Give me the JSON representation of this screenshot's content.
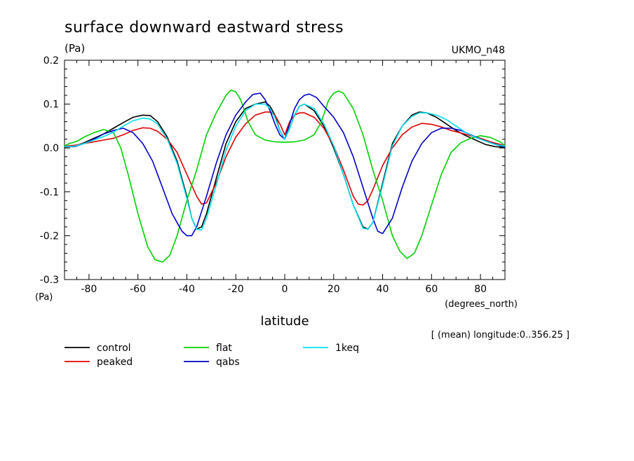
{
  "chart_data": {
    "type": "line",
    "title": "surface downward eastward stress",
    "units_label": "(Pa)",
    "axis_units_left": "(Pa)",
    "model_label": "UKMO_n48",
    "xlabel": "latitude",
    "xunits": "(degrees_north)",
    "subtitle_note": "[ (mean) longitude:0..356.25 ]",
    "xlim": [
      -90,
      90
    ],
    "ylim": [
      -0.3,
      0.2
    ],
    "xticks": [
      -80,
      -60,
      -40,
      -20,
      0,
      20,
      40,
      60,
      80
    ],
    "xtick_labels": [
      "-80",
      "-60",
      "-40",
      "-20",
      "0",
      "20",
      "40",
      "60",
      "80"
    ],
    "yticks": [
      -0.3,
      -0.2,
      -0.1,
      0.0,
      0.1,
      0.2
    ],
    "ytick_labels": [
      "-0.3",
      "-0.2",
      "-0.1",
      "0.0",
      "0.1",
      "0.2"
    ],
    "grid": false,
    "legend_position": "bottom-left",
    "series": [
      {
        "name": "control",
        "color": "#000000",
        "x": [
          -90,
          -86,
          -82,
          -78,
          -74,
          -70,
          -66,
          -62,
          -58,
          -55,
          -52,
          -48,
          -44,
          -40,
          -38,
          -36,
          -34,
          -32,
          -28,
          -24,
          -20,
          -16,
          -12,
          -8,
          -6,
          -4,
          -2,
          0,
          2,
          4,
          6,
          8,
          12,
          16,
          20,
          24,
          28,
          32,
          34,
          36,
          40,
          44,
          48,
          52,
          55,
          58,
          62,
          66,
          70,
          74,
          78,
          82,
          86,
          90
        ],
        "y": [
          0.002,
          0.004,
          0.012,
          0.022,
          0.032,
          0.045,
          0.058,
          0.07,
          0.075,
          0.074,
          0.06,
          0.025,
          -0.03,
          -0.11,
          -0.16,
          -0.185,
          -0.18,
          -0.15,
          -0.07,
          0.01,
          0.06,
          0.09,
          0.1,
          0.105,
          0.095,
          0.075,
          0.04,
          0.02,
          0.045,
          0.075,
          0.095,
          0.1,
          0.085,
          0.05,
          0.0,
          -0.06,
          -0.13,
          -0.18,
          -0.185,
          -0.17,
          -0.08,
          0.01,
          0.05,
          0.075,
          0.082,
          0.08,
          0.07,
          0.055,
          0.04,
          0.028,
          0.018,
          0.008,
          0.003,
          0.001
        ]
      },
      {
        "name": "peaked",
        "color": "#e00000",
        "x": [
          -90,
          -86,
          -82,
          -78,
          -74,
          -70,
          -66,
          -62,
          -58,
          -55,
          -52,
          -48,
          -44,
          -40,
          -36,
          -34,
          -32,
          -28,
          -24,
          -20,
          -16,
          -12,
          -8,
          -6,
          -4,
          -2,
          0,
          2,
          4,
          6,
          8,
          12,
          16,
          20,
          24,
          28,
          30,
          32,
          34,
          36,
          40,
          44,
          48,
          52,
          56,
          60,
          64,
          68,
          72,
          76,
          80,
          84,
          88,
          90
        ],
        "y": [
          0.004,
          0.006,
          0.01,
          0.014,
          0.018,
          0.022,
          0.03,
          0.04,
          0.046,
          0.045,
          0.038,
          0.02,
          -0.01,
          -0.06,
          -0.11,
          -0.128,
          -0.125,
          -0.08,
          -0.02,
          0.025,
          0.055,
          0.075,
          0.082,
          0.082,
          0.075,
          0.055,
          0.03,
          0.06,
          0.075,
          0.08,
          0.08,
          0.07,
          0.045,
          0.005,
          -0.05,
          -0.11,
          -0.128,
          -0.13,
          -0.12,
          -0.095,
          -0.04,
          0.0,
          0.03,
          0.048,
          0.056,
          0.054,
          0.048,
          0.04,
          0.034,
          0.028,
          0.022,
          0.014,
          0.008,
          0.005
        ]
      },
      {
        "name": "flat",
        "color": "#00d000",
        "x": [
          -90,
          -88,
          -85,
          -82,
          -78,
          -74,
          -70,
          -67,
          -64,
          -60,
          -56,
          -53,
          -50,
          -47,
          -44,
          -40,
          -36,
          -32,
          -28,
          -24,
          -22,
          -20,
          -18,
          -15,
          -12,
          -8,
          -4,
          0,
          4,
          8,
          12,
          15,
          18,
          20,
          22,
          24,
          28,
          32,
          36,
          40,
          44,
          47,
          50,
          53,
          56,
          60,
          64,
          68,
          72,
          76,
          80,
          84,
          88,
          90
        ],
        "y": [
          0.005,
          0.01,
          0.015,
          0.025,
          0.035,
          0.042,
          0.035,
          0.0,
          -0.06,
          -0.15,
          -0.225,
          -0.255,
          -0.26,
          -0.245,
          -0.2,
          -0.12,
          -0.05,
          0.03,
          0.08,
          0.12,
          0.132,
          0.128,
          0.11,
          0.06,
          0.03,
          0.018,
          0.014,
          0.013,
          0.014,
          0.018,
          0.03,
          0.06,
          0.11,
          0.125,
          0.13,
          0.125,
          0.09,
          0.03,
          -0.05,
          -0.12,
          -0.2,
          -0.235,
          -0.252,
          -0.24,
          -0.2,
          -0.13,
          -0.06,
          -0.01,
          0.012,
          0.022,
          0.028,
          0.024,
          0.014,
          0.005
        ]
      },
      {
        "name": "qabs",
        "color": "#0000c8",
        "x": [
          -90,
          -86,
          -82,
          -78,
          -74,
          -70,
          -66,
          -62,
          -58,
          -54,
          -50,
          -46,
          -42,
          -40,
          -38,
          -36,
          -32,
          -28,
          -24,
          -20,
          -16,
          -13,
          -10,
          -8,
          -6,
          -4,
          -2,
          0,
          2,
          4,
          6,
          8,
          10,
          13,
          16,
          20,
          24,
          28,
          32,
          36,
          38,
          40,
          44,
          48,
          52,
          56,
          60,
          64,
          68,
          72,
          76,
          80,
          84,
          88,
          90
        ],
        "y": [
          0.003,
          0.003,
          0.01,
          0.02,
          0.032,
          0.04,
          0.045,
          0.035,
          0.01,
          -0.03,
          -0.09,
          -0.15,
          -0.19,
          -0.2,
          -0.2,
          -0.18,
          -0.11,
          -0.035,
          0.03,
          0.075,
          0.105,
          0.122,
          0.125,
          0.11,
          0.085,
          0.055,
          0.03,
          0.02,
          0.055,
          0.09,
          0.11,
          0.12,
          0.123,
          0.115,
          0.095,
          0.07,
          0.035,
          -0.02,
          -0.09,
          -0.16,
          -0.19,
          -0.195,
          -0.16,
          -0.09,
          -0.03,
          0.01,
          0.035,
          0.045,
          0.045,
          0.04,
          0.03,
          0.02,
          0.012,
          0.005,
          0.002
        ]
      },
      {
        "name": "1keq",
        "color": "#00e0f0",
        "x": [
          -90,
          -86,
          -82,
          -78,
          -74,
          -70,
          -66,
          -62,
          -58,
          -55,
          -52,
          -48,
          -44,
          -40,
          -38,
          -36,
          -34,
          -32,
          -28,
          -24,
          -20,
          -16,
          -12,
          -8,
          -6,
          -4,
          -2,
          0,
          2,
          4,
          6,
          8,
          12,
          16,
          20,
          24,
          28,
          32,
          34,
          36,
          40,
          44,
          48,
          52,
          55,
          58,
          62,
          66,
          70,
          74,
          78,
          82,
          86,
          90
        ],
        "y": [
          0.003,
          0.004,
          0.01,
          0.018,
          0.026,
          0.036,
          0.05,
          0.062,
          0.068,
          0.066,
          0.055,
          0.02,
          -0.035,
          -0.115,
          -0.16,
          -0.185,
          -0.187,
          -0.16,
          -0.085,
          -0.005,
          0.05,
          0.085,
          0.1,
          0.1,
          0.09,
          0.07,
          0.04,
          0.02,
          0.045,
          0.075,
          0.095,
          0.1,
          0.09,
          0.055,
          0.005,
          -0.06,
          -0.13,
          -0.183,
          -0.185,
          -0.17,
          -0.085,
          0.005,
          0.05,
          0.072,
          0.08,
          0.08,
          0.075,
          0.065,
          0.05,
          0.035,
          0.024,
          0.016,
          0.008,
          0.004
        ]
      }
    ]
  }
}
